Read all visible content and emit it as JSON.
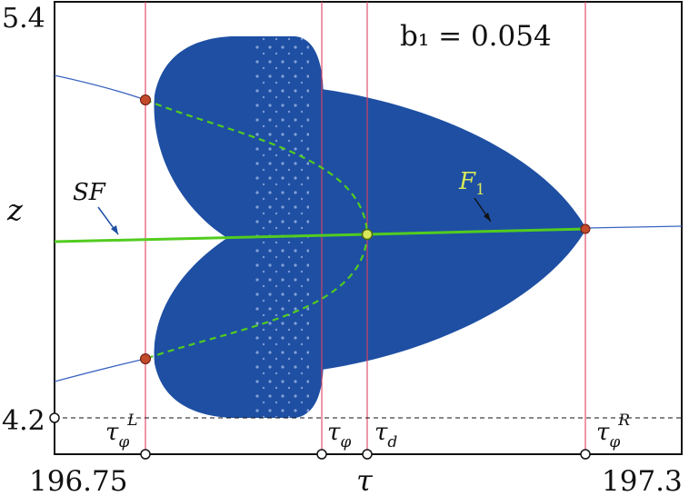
{
  "figure": {
    "annotation": "b₁ = 0.054",
    "y_axis": {
      "label": "z",
      "top_tick": "5.4",
      "bottom_tick": "4.2"
    },
    "x_axis": {
      "label": "τ",
      "left_tick": "196.75",
      "right_tick": "197.3"
    },
    "markers": {
      "tau_phi_L": {
        "base": "τ",
        "sub": "φ",
        "sup": "L"
      },
      "tau_phi": {
        "base": "τ",
        "sub": "φ"
      },
      "tau_d": {
        "base": "τ",
        "sub": "d"
      },
      "tau_phi_R": {
        "base": "τ",
        "sub": "φ",
        "sup": "R"
      }
    },
    "labels": {
      "sf": "SF",
      "f1": {
        "base": "F",
        "sub": "1"
      }
    },
    "colors": {
      "attractor": "#1e4fa3",
      "green_line": "#52cc1f",
      "red_guides": "#e04060",
      "orbit_point": "#c24a2a",
      "center_point": "#d8e85a"
    }
  }
}
